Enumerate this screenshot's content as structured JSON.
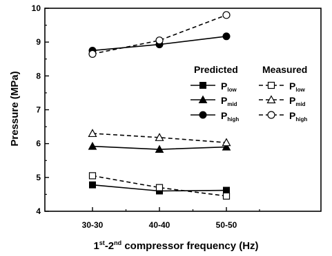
{
  "chart_data": {
    "type": "line",
    "xlabel": {
      "n1": "1",
      "sup1": "st",
      "mid": "-2",
      "sup2": "nd",
      "rest": " compressor frequency (Hz)"
    },
    "ylabel": "Pressure (MPa)",
    "categories": [
      "30-30",
      "40-40",
      "50-50"
    ],
    "ylim": [
      4,
      10
    ],
    "yticks": [
      "4",
      "5",
      "6",
      "7",
      "8",
      "9",
      "10"
    ],
    "grid": false,
    "legend_position": "right",
    "legend_groups": [
      "Predicted",
      "Measured"
    ],
    "series": [
      {
        "name": "P",
        "sub": "low",
        "group": "Predicted",
        "marker": "square",
        "filled": true,
        "dashed": false,
        "values": [
          4.78,
          4.6,
          4.62
        ]
      },
      {
        "name": "P",
        "sub": "mid",
        "group": "Predicted",
        "marker": "triangle",
        "filled": true,
        "dashed": false,
        "values": [
          5.92,
          5.83,
          5.9
        ]
      },
      {
        "name": "P",
        "sub": "high",
        "group": "Predicted",
        "marker": "circle",
        "filled": true,
        "dashed": false,
        "values": [
          8.75,
          8.93,
          9.17
        ]
      },
      {
        "name": "P",
        "sub": "low",
        "group": "Measured",
        "marker": "square",
        "filled": false,
        "dashed": true,
        "values": [
          5.05,
          4.7,
          4.45
        ]
      },
      {
        "name": "P",
        "sub": "mid",
        "group": "Measured",
        "marker": "triangle",
        "filled": false,
        "dashed": true,
        "values": [
          6.3,
          6.18,
          6.03
        ]
      },
      {
        "name": "P",
        "sub": "high",
        "group": "Measured",
        "marker": "circle",
        "filled": false,
        "dashed": true,
        "values": [
          8.65,
          9.05,
          9.8
        ]
      }
    ]
  }
}
